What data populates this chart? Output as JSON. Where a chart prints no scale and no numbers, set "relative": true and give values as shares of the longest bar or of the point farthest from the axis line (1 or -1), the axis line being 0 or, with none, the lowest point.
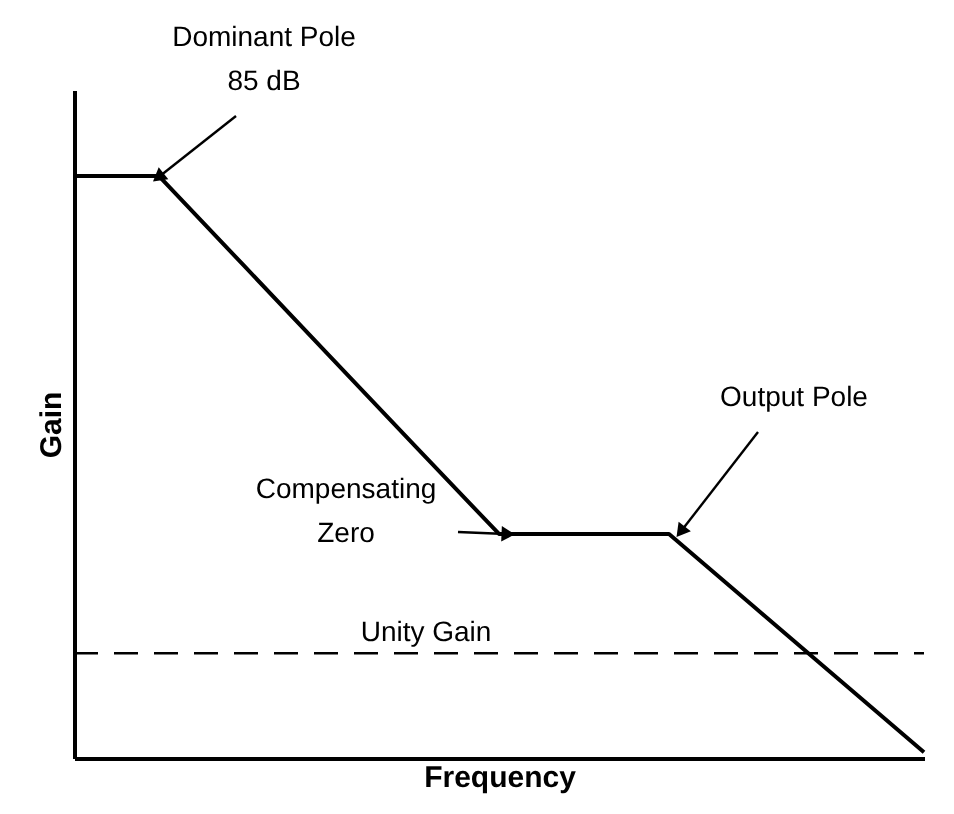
{
  "chart_data": {
    "type": "line",
    "relative": true,
    "xlabel": "Frequency",
    "ylabel": "Gain",
    "categories": [
      null,
      null,
      null,
      null,
      null,
      null,
      null,
      null,
      null,
      null,
      null
    ],
    "series": [
      {
        "color": "#000000",
        "values": [
          1,
          1,
          0.846,
          0.692,
          0.538,
          0.385,
          0.385,
          0.385,
          0.26,
          0.135,
          0.01
        ]
      }
    ],
    "ref_lines": [
      {
        "axis": "y",
        "value": 0.18,
        "label": "Unity Gain",
        "color": "#000000",
        "line_style": "dashed"
      }
    ],
    "annotations": [
      "Dominant Pole\n85 dB",
      "Compensating\nZero",
      "Output Pole"
    ],
    "grid": false,
    "marker": "none",
    "line_style": "solid",
    "tick_labels": false
  }
}
